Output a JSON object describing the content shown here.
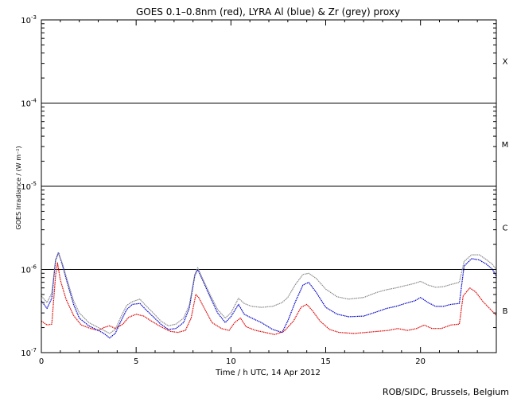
{
  "chart_data": {
    "type": "line",
    "title": "GOES 0.1–0.8nm (red), LYRA Al (blue) & Zr (grey) proxy",
    "xlabel": "Time / h UTC, 14 Apr 2012",
    "ylabel": "GOES Irradiance / (W m⁻²)",
    "xlim": [
      0,
      24
    ],
    "ylim": [
      1e-07,
      0.001
    ],
    "y_scale": "log",
    "x_ticks": [
      0,
      5,
      10,
      15,
      20
    ],
    "x_tick_labels": [
      "0",
      "5",
      "10",
      "15",
      "20"
    ],
    "y_ticks": [
      1e-07,
      1e-06,
      1e-05,
      0.0001,
      0.001
    ],
    "y_tick_labels": [
      {
        "mant": "10",
        "exp": "-7"
      },
      {
        "mant": "10",
        "exp": "-6"
      },
      {
        "mant": "10",
        "exp": "-5"
      },
      {
        "mant": "10",
        "exp": "-4"
      },
      {
        "mant": "10",
        "exp": "-3"
      }
    ],
    "flare_class_lines": [
      1e-06,
      1e-05,
      0.0001
    ],
    "flare_classes": [
      {
        "label": "X",
        "y": 0.00032
      },
      {
        "label": "M",
        "y": 3.2e-05
      },
      {
        "label": "C",
        "y": 3.2e-06
      },
      {
        "label": "B",
        "y": 3.2e-07
      }
    ],
    "series": [
      {
        "color": "#e00000",
        "points": [
          [
            0.0,
            2.4e-07
          ],
          [
            0.3,
            2.15e-07
          ],
          [
            0.55,
            2.2e-07
          ],
          [
            0.75,
            8.5e-07
          ],
          [
            0.85,
            1.2e-06
          ],
          [
            1.0,
            7.5e-07
          ],
          [
            1.3,
            4.4e-07
          ],
          [
            1.7,
            2.8e-07
          ],
          [
            2.1,
            2.15e-07
          ],
          [
            2.6,
            1.95e-07
          ],
          [
            3.0,
            1.85e-07
          ],
          [
            3.3,
            2e-07
          ],
          [
            3.6,
            2.1e-07
          ],
          [
            3.9,
            1.95e-07
          ],
          [
            4.3,
            2.2e-07
          ],
          [
            4.6,
            2.65e-07
          ],
          [
            5.0,
            2.9e-07
          ],
          [
            5.4,
            2.75e-07
          ],
          [
            5.8,
            2.4e-07
          ],
          [
            6.3,
            2.05e-07
          ],
          [
            6.8,
            1.8e-07
          ],
          [
            7.2,
            1.75e-07
          ],
          [
            7.6,
            1.85e-07
          ],
          [
            7.9,
            2.6e-07
          ],
          [
            8.15,
            5e-07
          ],
          [
            8.3,
            4.6e-07
          ],
          [
            8.6,
            3.4e-07
          ],
          [
            9.0,
            2.3e-07
          ],
          [
            9.5,
            1.95e-07
          ],
          [
            9.9,
            1.85e-07
          ],
          [
            10.2,
            2.3e-07
          ],
          [
            10.5,
            2.6e-07
          ],
          [
            10.8,
            2.05e-07
          ],
          [
            11.3,
            1.85e-07
          ],
          [
            11.8,
            1.75e-07
          ],
          [
            12.3,
            1.65e-07
          ],
          [
            12.8,
            1.8e-07
          ],
          [
            13.3,
            2.4e-07
          ],
          [
            13.7,
            3.5e-07
          ],
          [
            14.0,
            3.8e-07
          ],
          [
            14.3,
            3.2e-07
          ],
          [
            14.7,
            2.4e-07
          ],
          [
            15.2,
            1.9e-07
          ],
          [
            15.7,
            1.75e-07
          ],
          [
            16.5,
            1.7e-07
          ],
          [
            17.5,
            1.78e-07
          ],
          [
            18.3,
            1.85e-07
          ],
          [
            18.8,
            1.95e-07
          ],
          [
            19.3,
            1.85e-07
          ],
          [
            19.8,
            1.95e-07
          ],
          [
            20.2,
            2.15e-07
          ],
          [
            20.6,
            1.95e-07
          ],
          [
            21.1,
            1.95e-07
          ],
          [
            21.6,
            2.15e-07
          ],
          [
            22.05,
            2.2e-07
          ],
          [
            22.25,
            4.8e-07
          ],
          [
            22.6,
            6e-07
          ],
          [
            22.9,
            5.4e-07
          ],
          [
            23.3,
            4.1e-07
          ],
          [
            23.7,
            3.3e-07
          ],
          [
            24.0,
            2.8e-07
          ]
        ]
      },
      {
        "color": "#0000cc",
        "points": [
          [
            0.0,
            4.2e-07
          ],
          [
            0.3,
            3.4e-07
          ],
          [
            0.55,
            4.5e-07
          ],
          [
            0.75,
            1.3e-06
          ],
          [
            0.9,
            1.6e-06
          ],
          [
            1.1,
            1.15e-06
          ],
          [
            1.4,
            6.5e-07
          ],
          [
            1.7,
            3.8e-07
          ],
          [
            2.0,
            2.6e-07
          ],
          [
            2.5,
            2.1e-07
          ],
          [
            3.0,
            1.85e-07
          ],
          [
            3.3,
            1.7e-07
          ],
          [
            3.6,
            1.5e-07
          ],
          [
            3.9,
            1.7e-07
          ],
          [
            4.2,
            2.4e-07
          ],
          [
            4.5,
            3.3e-07
          ],
          [
            4.8,
            3.8e-07
          ],
          [
            5.2,
            3.9e-07
          ],
          [
            5.5,
            3.3e-07
          ],
          [
            5.9,
            2.7e-07
          ],
          [
            6.3,
            2.2e-07
          ],
          [
            6.7,
            1.9e-07
          ],
          [
            7.1,
            1.95e-07
          ],
          [
            7.5,
            2.3e-07
          ],
          [
            7.8,
            3.4e-07
          ],
          [
            8.1,
            8.5e-07
          ],
          [
            8.25,
            1e-06
          ],
          [
            8.5,
            7.5e-07
          ],
          [
            8.9,
            4.7e-07
          ],
          [
            9.3,
            3e-07
          ],
          [
            9.7,
            2.3e-07
          ],
          [
            10.0,
            2.7e-07
          ],
          [
            10.4,
            3.8e-07
          ],
          [
            10.7,
            2.9e-07
          ],
          [
            11.1,
            2.6e-07
          ],
          [
            11.6,
            2.3e-07
          ],
          [
            12.2,
            1.9e-07
          ],
          [
            12.7,
            1.75e-07
          ],
          [
            13.0,
            2.4e-07
          ],
          [
            13.4,
            4.1e-07
          ],
          [
            13.8,
            6.5e-07
          ],
          [
            14.1,
            7e-07
          ],
          [
            14.5,
            5.3e-07
          ],
          [
            15.0,
            3.5e-07
          ],
          [
            15.6,
            2.9e-07
          ],
          [
            16.2,
            2.7e-07
          ],
          [
            17.0,
            2.75e-07
          ],
          [
            17.7,
            3.1e-07
          ],
          [
            18.2,
            3.4e-07
          ],
          [
            18.7,
            3.6e-07
          ],
          [
            19.2,
            3.9e-07
          ],
          [
            19.7,
            4.2e-07
          ],
          [
            20.0,
            4.6e-07
          ],
          [
            20.4,
            4e-07
          ],
          [
            20.8,
            3.6e-07
          ],
          [
            21.2,
            3.6e-07
          ],
          [
            21.6,
            3.8e-07
          ],
          [
            22.05,
            3.9e-07
          ],
          [
            22.3,
            1.1e-06
          ],
          [
            22.7,
            1.35e-06
          ],
          [
            23.1,
            1.3e-06
          ],
          [
            23.5,
            1.15e-06
          ],
          [
            23.8,
            1e-06
          ],
          [
            24.0,
            8.3e-07
          ]
        ]
      },
      {
        "color": "#888888",
        "points": [
          [
            0.0,
            4.8e-07
          ],
          [
            0.3,
            4e-07
          ],
          [
            0.55,
            5.2e-07
          ],
          [
            0.75,
            1.3e-06
          ],
          [
            0.9,
            1.55e-06
          ],
          [
            1.1,
            1.2e-06
          ],
          [
            1.4,
            7e-07
          ],
          [
            1.7,
            4.2e-07
          ],
          [
            2.0,
            3e-07
          ],
          [
            2.5,
            2.3e-07
          ],
          [
            3.0,
            2e-07
          ],
          [
            3.3,
            1.85e-07
          ],
          [
            3.6,
            1.7e-07
          ],
          [
            3.9,
            1.9e-07
          ],
          [
            4.2,
            2.7e-07
          ],
          [
            4.5,
            3.7e-07
          ],
          [
            4.8,
            4.1e-07
          ],
          [
            5.2,
            4.4e-07
          ],
          [
            5.5,
            3.7e-07
          ],
          [
            5.9,
            3e-07
          ],
          [
            6.3,
            2.4e-07
          ],
          [
            6.7,
            2.1e-07
          ],
          [
            7.1,
            2.2e-07
          ],
          [
            7.5,
            2.6e-07
          ],
          [
            7.8,
            3.7e-07
          ],
          [
            8.1,
            8.8e-07
          ],
          [
            8.25,
            1.05e-06
          ],
          [
            8.5,
            7.8e-07
          ],
          [
            8.9,
            5e-07
          ],
          [
            9.3,
            3.3e-07
          ],
          [
            9.7,
            2.6e-07
          ],
          [
            10.0,
            3e-07
          ],
          [
            10.4,
            4.5e-07
          ],
          [
            10.7,
            3.9e-07
          ],
          [
            11.1,
            3.6e-07
          ],
          [
            11.6,
            3.5e-07
          ],
          [
            12.2,
            3.6e-07
          ],
          [
            12.7,
            4e-07
          ],
          [
            13.0,
            4.6e-07
          ],
          [
            13.4,
            6.6e-07
          ],
          [
            13.8,
            8.7e-07
          ],
          [
            14.1,
            9e-07
          ],
          [
            14.5,
            7.8e-07
          ],
          [
            15.0,
            5.8e-07
          ],
          [
            15.6,
            4.7e-07
          ],
          [
            16.2,
            4.4e-07
          ],
          [
            17.0,
            4.6e-07
          ],
          [
            17.7,
            5.3e-07
          ],
          [
            18.2,
            5.7e-07
          ],
          [
            18.7,
            6e-07
          ],
          [
            19.2,
            6.4e-07
          ],
          [
            19.7,
            6.8e-07
          ],
          [
            20.0,
            7.2e-07
          ],
          [
            20.4,
            6.5e-07
          ],
          [
            20.8,
            6.1e-07
          ],
          [
            21.2,
            6.2e-07
          ],
          [
            21.6,
            6.6e-07
          ],
          [
            22.05,
            7e-07
          ],
          [
            22.3,
            1.25e-06
          ],
          [
            22.7,
            1.5e-06
          ],
          [
            23.1,
            1.5e-06
          ],
          [
            23.5,
            1.3e-06
          ],
          [
            23.8,
            1.15e-06
          ],
          [
            24.0,
            1e-06
          ]
        ]
      }
    ],
    "grid": false,
    "legend": "none"
  },
  "credit": "ROB/SIDC, Brussels, Belgium"
}
